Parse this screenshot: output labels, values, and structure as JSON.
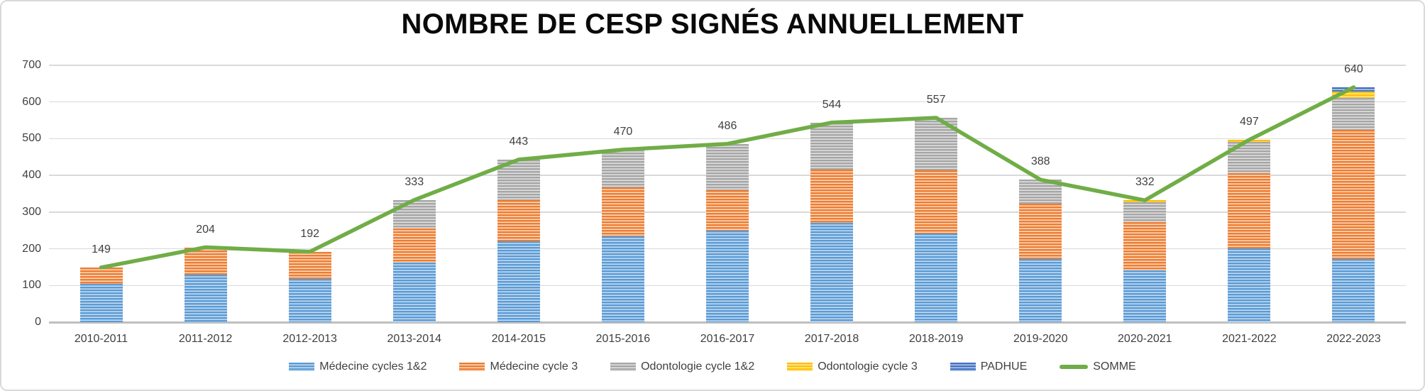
{
  "title": "NOMBRE DE CESP SIGNÉS ANNUELLEMENT",
  "colors": {
    "gridline": "#D9D9D9",
    "axis_baseline": "#BFBFBF",
    "text": "#404040",
    "title_text": "#0a0a0a",
    "line": "#70AD47"
  },
  "chart_data": {
    "type": "bar",
    "subtype": "stacked-bars-with-total-line",
    "title": "NOMBRE DE CESP SIGNÉS ANNUELLEMENT",
    "xlabel": "",
    "ylabel": "",
    "ylim": [
      0,
      700
    ],
    "yticks": [
      0,
      100,
      200,
      300,
      400,
      500,
      600,
      700
    ],
    "grid": true,
    "legend_position": "bottom",
    "categories": [
      "2010-2011",
      "2011-2012",
      "2012-2013",
      "2013-2014",
      "2014-2015",
      "2015-2016",
      "2016-2017",
      "2017-2018",
      "2018-2019",
      "2019-2020",
      "2020-2021",
      "2021-2022",
      "2022-2023"
    ],
    "series": [
      {
        "name": "Médecine cycles 1&2",
        "color_base": "#5B9BD5",
        "color_stripe": "#C9DEF1",
        "values": [
          105,
          130,
          118,
          162,
          221,
          234,
          249,
          270,
          241,
          172,
          141,
          201,
          173
        ]
      },
      {
        "name": "Médecine cycle 3",
        "color_base": "#ED7D31",
        "color_stripe": "#FBDCC5",
        "values": [
          44,
          74,
          74,
          93,
          112,
          134,
          110,
          146,
          173,
          152,
          132,
          205,
          352
        ]
      },
      {
        "name": "Odontologie cycle 1&2",
        "color_base": "#A6A6A6",
        "color_stripe": "#E2E2E2",
        "values": [
          0,
          0,
          0,
          78,
          110,
          102,
          127,
          128,
          143,
          64,
          54,
          85,
          86
        ]
      },
      {
        "name": "Odontologie cycle 3",
        "color_base": "#FFC000",
        "color_stripe": "#FFE9A8",
        "values": [
          0,
          0,
          0,
          0,
          0,
          0,
          0,
          0,
          0,
          0,
          5,
          6,
          17
        ]
      },
      {
        "name": "PADHUE",
        "color_base": "#4472C4",
        "color_stripe": "#BCCDEA",
        "values": [
          0,
          0,
          0,
          0,
          0,
          0,
          0,
          0,
          0,
          0,
          0,
          0,
          12
        ]
      }
    ],
    "line_series": {
      "name": "SOMME",
      "color": "#70AD47",
      "values": [
        149,
        204,
        192,
        333,
        443,
        470,
        486,
        544,
        557,
        388,
        332,
        497,
        640
      ]
    },
    "total_labels": [
      "149",
      "204",
      "192",
      "333",
      "443",
      "470",
      "486",
      "544",
      "557",
      "388",
      "332",
      "497",
      "640"
    ]
  },
  "legend": {
    "items": [
      {
        "label": "Médecine cycles 1&2",
        "swatch": "patch",
        "series_index": 0
      },
      {
        "label": "Médecine cycle 3",
        "swatch": "patch",
        "series_index": 1
      },
      {
        "label": "Odontologie cycle 1&2",
        "swatch": "patch",
        "series_index": 2
      },
      {
        "label": "Odontologie cycle 3",
        "swatch": "patch",
        "series_index": 3
      },
      {
        "label": "PADHUE",
        "swatch": "patch",
        "series_index": 4
      },
      {
        "label": "SOMME",
        "swatch": "line",
        "series_index": -1
      }
    ]
  }
}
